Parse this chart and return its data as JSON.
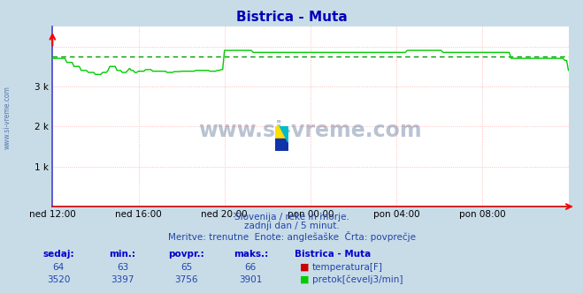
{
  "title": "Bistrica - Muta",
  "bg_color": "#c8dce8",
  "plot_bg_color": "#ffffff",
  "line_color_flow": "#00cc00",
  "line_color_temp": "#cc0000",
  "avg_line_color": "#009900",
  "x_labels": [
    "ned 12:00",
    "ned 16:00",
    "ned 20:00",
    "pon 00:00",
    "pon 04:00",
    "pon 08:00"
  ],
  "x_ticks": [
    0,
    48,
    96,
    144,
    192,
    240
  ],
  "total_points": 289,
  "ylim": [
    0,
    4500
  ],
  "grid_color_h": "#ffaaaa",
  "grid_color_v": "#ffaaaa",
  "axis_color_left": "#4444cc",
  "axis_color_bottom": "#cc0000",
  "subtitle1": "Slovenija / reke in morje.",
  "subtitle2": "zadnji dan / 5 minut.",
  "subtitle3": "Meritve: trenutne  Enote: anglešaške  Črta: povprečje",
  "legend_title": "Bistrica - Muta",
  "legend_temp_label": "temperatura[F]",
  "legend_flow_label": "pretok[čevelj3/min]",
  "sedaj_label": "sedaj:",
  "min_label": "min.:",
  "povpr_label": "povpr.:",
  "maks_label": "maks.:",
  "temp_sedaj": 64,
  "temp_min": 63,
  "temp_povpr": 65,
  "temp_maks": 66,
  "flow_sedaj": 3520,
  "flow_min": 3397,
  "flow_povpr": 3756,
  "flow_maks": 3901,
  "avg_flow": 3756,
  "watermark": "www.si-vreme.com",
  "watermark_color": "#1a3a6a",
  "left_text": "www.si-vreme.com",
  "flow_data": [
    3700,
    3700,
    3700,
    3700,
    3700,
    3700,
    3700,
    3700,
    3600,
    3600,
    3600,
    3600,
    3500,
    3500,
    3500,
    3500,
    3400,
    3400,
    3400,
    3400,
    3350,
    3350,
    3350,
    3350,
    3300,
    3300,
    3300,
    3300,
    3350,
    3350,
    3350,
    3400,
    3500,
    3500,
    3500,
    3500,
    3400,
    3400,
    3400,
    3350,
    3350,
    3350,
    3400,
    3450,
    3400,
    3400,
    3350,
    3350,
    3380,
    3380,
    3380,
    3380,
    3420,
    3420,
    3420,
    3420,
    3380,
    3380,
    3380,
    3380,
    3380,
    3380,
    3380,
    3380,
    3350,
    3350,
    3350,
    3350,
    3370,
    3370,
    3370,
    3370,
    3380,
    3380,
    3380,
    3380,
    3380,
    3380,
    3380,
    3380,
    3400,
    3400,
    3400,
    3400,
    3400,
    3400,
    3400,
    3400,
    3380,
    3380,
    3380,
    3380,
    3400,
    3400,
    3420,
    3420,
    3900,
    3900,
    3900,
    3900,
    3900,
    3900,
    3900,
    3900,
    3900,
    3900,
    3900,
    3900,
    3900,
    3900,
    3900,
    3900,
    3850,
    3850,
    3850,
    3850,
    3850,
    3850,
    3850,
    3850,
    3850,
    3850,
    3850,
    3850,
    3850,
    3850,
    3850,
    3850,
    3850,
    3850,
    3850,
    3850,
    3850,
    3850,
    3850,
    3850,
    3850,
    3850,
    3850,
    3850,
    3850,
    3850,
    3850,
    3850,
    3850,
    3850,
    3850,
    3850,
    3850,
    3850,
    3850,
    3850,
    3850,
    3850,
    3850,
    3850,
    3850,
    3850,
    3850,
    3850,
    3850,
    3850,
    3850,
    3850,
    3850,
    3850,
    3850,
    3850,
    3850,
    3850,
    3850,
    3850,
    3850,
    3850,
    3850,
    3850,
    3850,
    3850,
    3850,
    3850,
    3850,
    3850,
    3850,
    3850,
    3850,
    3850,
    3850,
    3850,
    3850,
    3850,
    3850,
    3850,
    3850,
    3850,
    3850,
    3850,
    3850,
    3850,
    3900,
    3900,
    3900,
    3900,
    3900,
    3900,
    3900,
    3900,
    3900,
    3900,
    3900,
    3900,
    3900,
    3900,
    3900,
    3900,
    3900,
    3900,
    3900,
    3900,
    3850,
    3850,
    3850,
    3850,
    3850,
    3850,
    3850,
    3850,
    3850,
    3850,
    3850,
    3850,
    3850,
    3850,
    3850,
    3850,
    3850,
    3850,
    3850,
    3850,
    3850,
    3850,
    3850,
    3850,
    3850,
    3850,
    3850,
    3850,
    3850,
    3850,
    3850,
    3850,
    3850,
    3850,
    3850,
    3850,
    3850,
    3850,
    3700,
    3700,
    3700,
    3700,
    3700,
    3700,
    3700,
    3700,
    3700,
    3700,
    3700,
    3700,
    3700,
    3700,
    3700,
    3700,
    3700,
    3700,
    3700,
    3700,
    3700,
    3700,
    3700,
    3700,
    3700,
    3700,
    3700,
    3700,
    3700,
    3700,
    3650,
    3650,
    3400
  ]
}
